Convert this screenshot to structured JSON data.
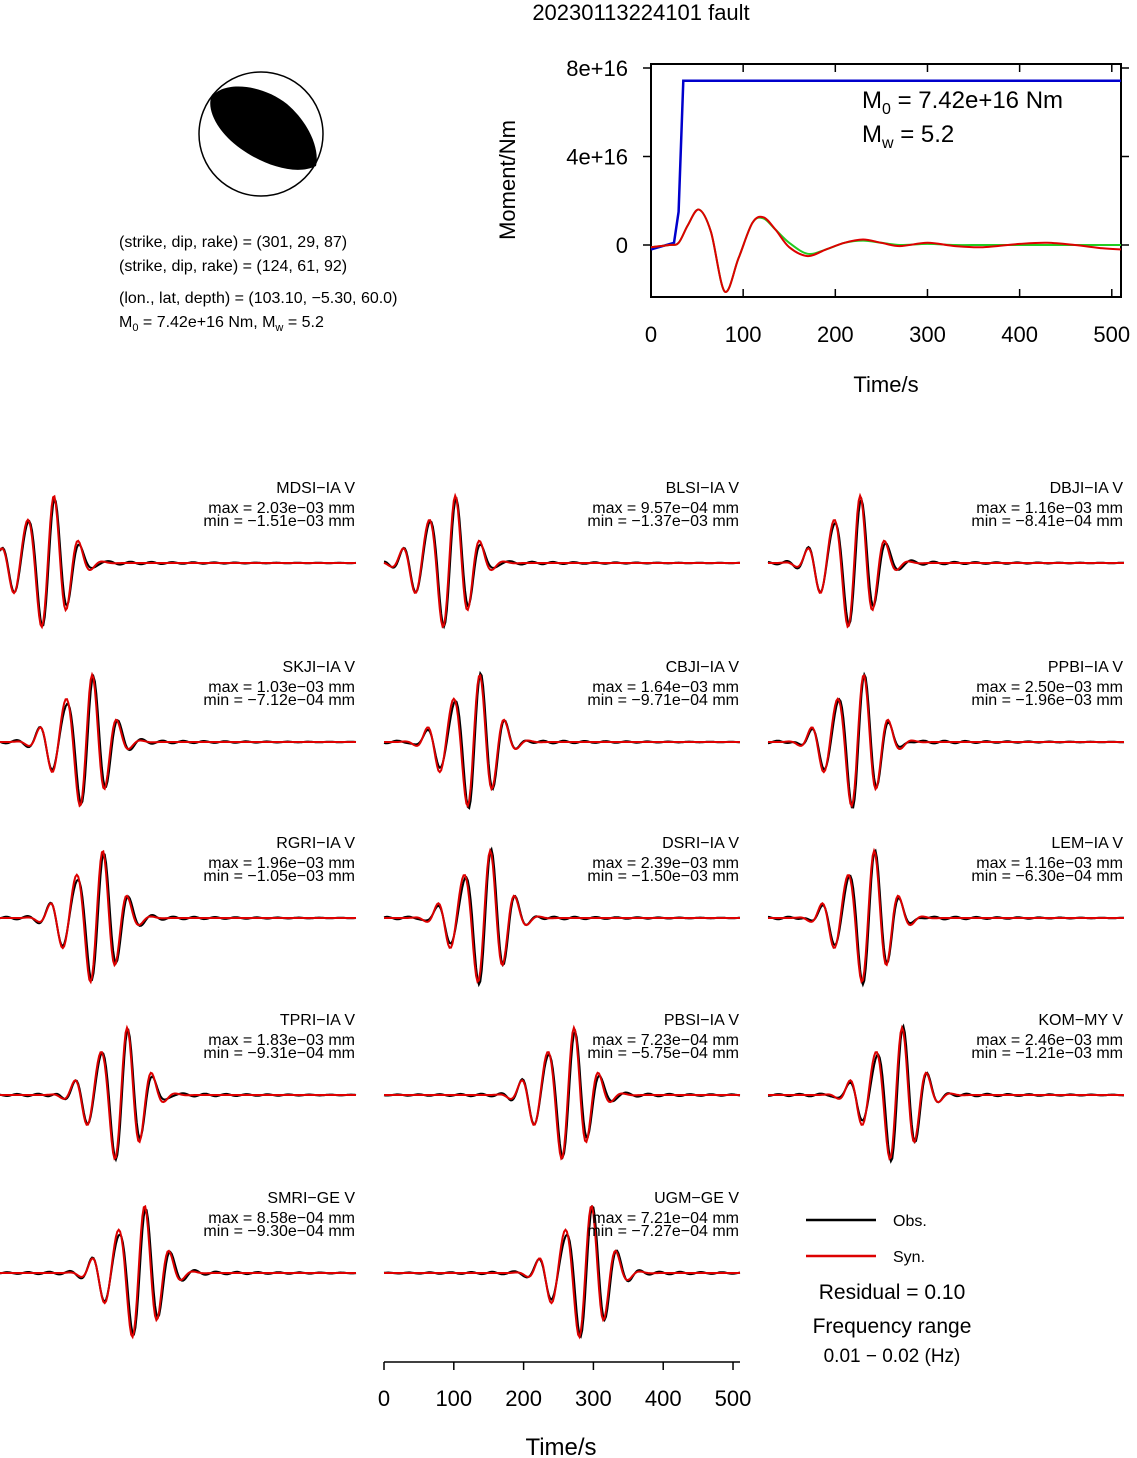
{
  "title": "20230113224101 fault",
  "mechanism": {
    "plane1": "(strike, dip, rake) = (301, 29, 87)",
    "plane2": "(strike, dip, rake) = (124, 61, 92)",
    "location": "(lon., lat, depth) = (103.10, −5.30, 60.0)",
    "moment_prefix": "M",
    "moment_sub": "0",
    "moment_value": " = 7.42e+16 Nm, M",
    "mw_sub": "w",
    "mw_value": " = 5.2"
  },
  "chart_data": [
    {
      "type": "line",
      "id": "moment-rate",
      "xlabel": "Time/s",
      "ylabel": "Moment/Nm",
      "xlim": [
        0,
        510
      ],
      "ylim": [
        -2.2e+16,
        8e+16
      ],
      "xticks": [
        "0",
        "100",
        "200",
        "300",
        "400",
        "500"
      ],
      "yticks": [
        "0",
        "4e+16",
        "8e+16"
      ],
      "annotation": {
        "m0_prefix": "M",
        "m0_sub": "0",
        "m0_value": " = 7.42e+16 Nm",
        "mw_prefix": "M",
        "mw_sub": "w",
        "mw_value": " = 5.2"
      },
      "colors": {
        "cumulative": "#0000cc",
        "obs": "#22cc22",
        "syn": "#dd0000",
        "overlap": "#8a6a00"
      },
      "series": [
        {
          "key": "cumulative",
          "x": [
            0,
            25,
            30,
            35,
            40,
            510
          ],
          "y": [
            -2000000000000000.0,
            1000000000000000.0,
            1.5e+16,
            7.42e+16,
            7.42e+16,
            7.42e+16
          ]
        },
        {
          "key": "obs",
          "x": [
            0,
            20,
            30,
            40,
            52,
            65,
            80,
            95,
            110,
            122,
            135,
            150,
            170,
            190,
            210,
            230,
            250,
            270,
            300,
            330,
            360,
            400,
            430,
            460,
            490,
            510
          ],
          "y": [
            -1000000000000000.0,
            0,
            1000000000000000.0,
            9000000000000000.0,
            1.6e+16,
            6000000000000000.0,
            -2.1e+16,
            -6000000000000000.0,
            1e+16,
            1.2e+16,
            7000000000000000.0,
            1000000000000000.0,
            -4000000000000000.0,
            -2000000000000000.0,
            1000000000000000.0,
            2000000000000000.0,
            1000000000000000.0,
            0,
            500000000000000.0,
            0,
            0,
            0,
            0,
            0,
            0,
            0
          ]
        },
        {
          "key": "syn",
          "x": [
            0,
            20,
            30,
            40,
            52,
            65,
            80,
            95,
            110,
            122,
            135,
            150,
            170,
            190,
            210,
            230,
            250,
            270,
            300,
            330,
            360,
            400,
            430,
            460,
            490,
            510
          ],
          "y": [
            -1000000000000000.0,
            0,
            1000000000000000.0,
            9000000000000000.0,
            1.6e+16,
            6000000000000000.0,
            -2.1e+16,
            -6000000000000000.0,
            1e+16,
            1.25e+16,
            7000000000000000.0,
            -1000000000000000.0,
            -5000000000000000.0,
            -2000000000000000.0,
            1000000000000000.0,
            2500000000000000.0,
            1000000000000000.0,
            -500000000000000.0,
            1000000000000000.0,
            -500000000000000.0,
            -1000000000000000.0,
            500000000000000.0,
            1000000000000000.0,
            0,
            -1500000000000000.0,
            -2000000000000000.0
          ]
        }
      ]
    },
    {
      "type": "line",
      "id": "waveforms",
      "xlabel": "Time/s",
      "xlim": [
        0,
        510
      ],
      "xticks": [
        "0",
        "100",
        "200",
        "300",
        "400",
        "500"
      ],
      "colors": {
        "obs": "#000000",
        "syn": "#dd0000"
      },
      "legend": {
        "obs": "Obs.",
        "syn": "Syn."
      },
      "residual": "Residual = 0.10",
      "freq_label": "Frequency range",
      "freq_value": "0.01 − 0.02 (Hz)",
      "stations": [
        {
          "name": "MDSI−IA V",
          "max": "max = 2.03e−03 mm",
          "min": "min = −1.51e−03 mm",
          "t0": 70
        },
        {
          "name": "BLSI−IA V",
          "max": "max = 9.57e−04 mm",
          "min": "min = −1.37e−03 mm",
          "t0": 95
        },
        {
          "name": "DBJI−IA V",
          "max": "max = 1.16e−03 mm",
          "min": "min = −8.41e−04 mm",
          "t0": 125
        },
        {
          "name": "SKJI−IA V",
          "max": "max = 1.03e−03 mm",
          "min": "min = −7.12e−04 mm",
          "t0": 125
        },
        {
          "name": "CBJI−IA V",
          "max": "max = 1.64e−03 mm",
          "min": "min = −9.71e−04 mm",
          "t0": 130
        },
        {
          "name": "PPBI−IA V",
          "max": "max = 2.50e−03 mm",
          "min": "min = −1.96e−03 mm",
          "t0": 130
        },
        {
          "name": "RGRI−IA V",
          "max": "max = 1.96e−03 mm",
          "min": "min = −1.05e−03 mm",
          "t0": 140
        },
        {
          "name": "DSRI−IA V",
          "max": "max = 2.39e−03 mm",
          "min": "min = −1.50e−03 mm",
          "t0": 145
        },
        {
          "name": "LEM−IA V",
          "max": "max = 1.16e−03 mm",
          "min": "min = −6.30e−04 mm",
          "t0": 145
        },
        {
          "name": "TPRI−IA V",
          "max": "max = 1.83e−03 mm",
          "min": "min = −9.31e−04 mm",
          "t0": 175
        },
        {
          "name": "PBSI−IA V",
          "max": "max = 7.23e−04 mm",
          "min": "min = −5.75e−04 mm",
          "t0": 265
        },
        {
          "name": "KOM−MY V",
          "max": "max = 2.46e−03 mm",
          "min": "min = −1.21e−03 mm",
          "t0": 185
        },
        {
          "name": "SMRI−GE V",
          "max": "max = 8.58e−04 mm",
          "min": "min = −9.30e−04 mm",
          "t0": 200
        },
        {
          "name": "UGM−GE V",
          "max": "max = 7.21e−04 mm",
          "min": "min = −7.27e−04 mm",
          "t0": 290
        }
      ]
    }
  ]
}
